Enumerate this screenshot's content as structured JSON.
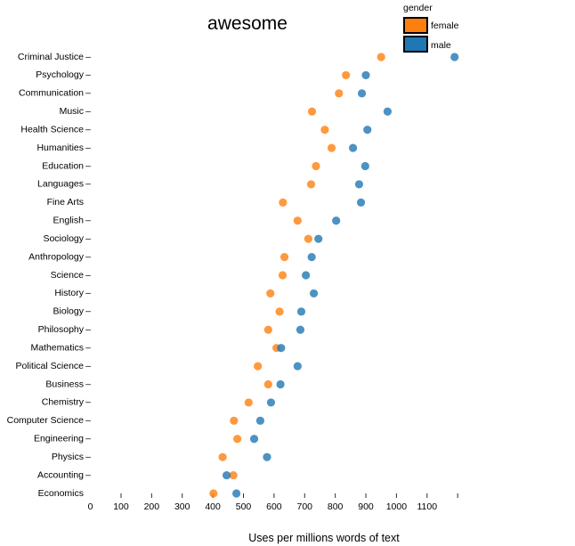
{
  "chart_data": {
    "type": "scatter",
    "title": "awesome",
    "xlabel": "Uses per millions words of text",
    "ylabel": "",
    "xlim": [
      0,
      1200
    ],
    "x_ticks": [
      0,
      100,
      200,
      300,
      400,
      500,
      600,
      700,
      800,
      900,
      1000,
      1100,
      1200
    ],
    "x_tick_labels": [
      "0",
      "100",
      "200",
      "300",
      "400",
      "500",
      "600",
      "700",
      "800",
      "900",
      "1000",
      "1100",
      ""
    ],
    "grid": false,
    "legend": {
      "title": "gender",
      "placement": "top-right",
      "entries": [
        {
          "name": "female",
          "color": "#ff7f0e"
        },
        {
          "name": "male",
          "color": "#1f77b4"
        }
      ]
    },
    "categories": [
      "Criminal Justice",
      "Psychology",
      "Communication",
      "Music",
      "Health Science",
      "Humanities",
      "Education",
      "Languages",
      "Fine Arts",
      "English",
      "Sociology",
      "Anthropology",
      "Science",
      "History",
      "Biology",
      "Philosophy",
      "Mathematics",
      "Political Science",
      "Business",
      "Chemistry",
      "Computer Science",
      "Engineering",
      "Physics",
      "Accounting",
      "Economics"
    ],
    "categories_without_dash": [
      "Fine Arts",
      "Economics"
    ],
    "series": [
      {
        "name": "female",
        "color": "#ff7f0e",
        "values": [
          950,
          835,
          812,
          724,
          766,
          788,
          737,
          721,
          629,
          677,
          712,
          634,
          628,
          588,
          618,
          581,
          608,
          547,
          581,
          517,
          469,
          480,
          432,
          467,
          402
        ]
      },
      {
        "name": "male",
        "color": "#1f77b4",
        "values": [
          1190,
          900,
          887,
          971,
          905,
          858,
          898,
          878,
          884,
          803,
          745,
          723,
          704,
          730,
          689,
          686,
          623,
          677,
          621,
          590,
          555,
          535,
          577,
          445,
          477
        ]
      }
    ]
  }
}
